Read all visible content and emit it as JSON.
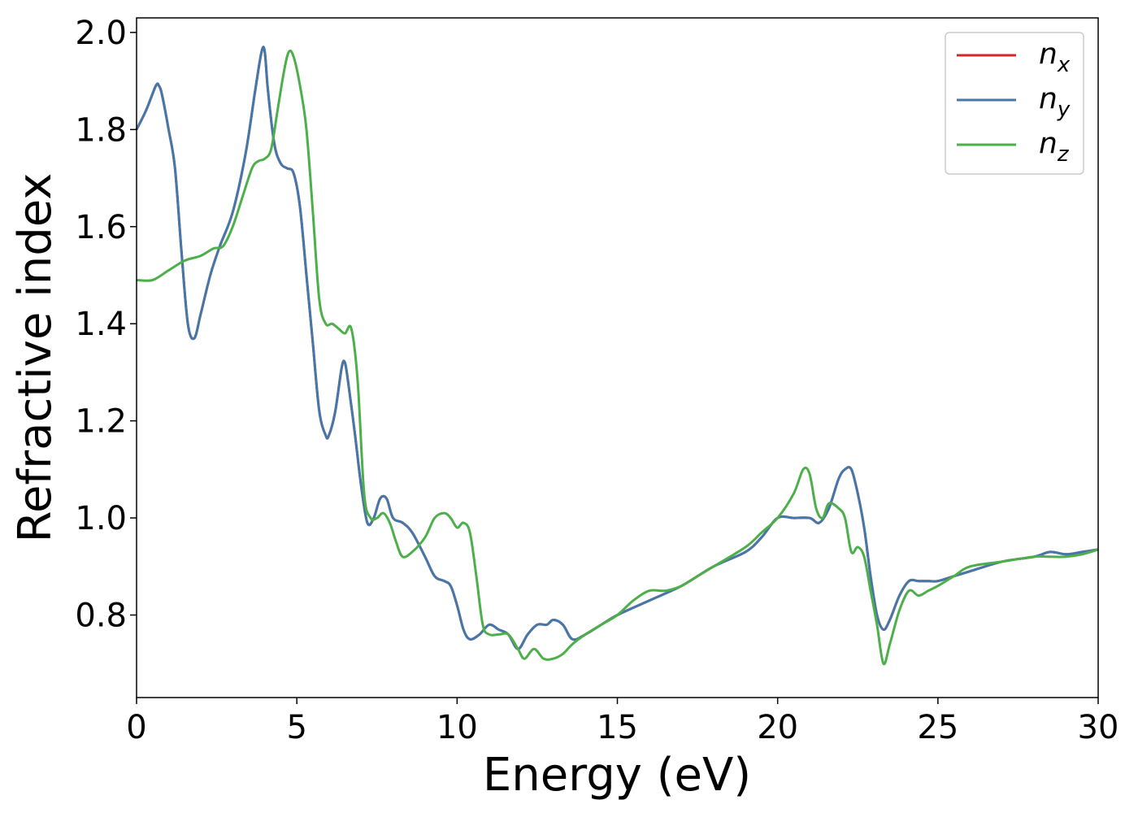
{
  "chart_data": {
    "type": "line",
    "title": "",
    "xlabel": "Energy (eV)",
    "ylabel": "Refractive index",
    "xlim": [
      0,
      30
    ],
    "ylim": [
      0.63,
      2.03
    ],
    "xticks": [
      "0",
      "5",
      "10",
      "15",
      "20",
      "25",
      "30"
    ],
    "yticks": [
      "0.8",
      "1.0",
      "1.2",
      "1.4",
      "1.6",
      "1.8",
      "2.0"
    ],
    "grid": false,
    "legend": {
      "placement": "top-right",
      "entries": [
        {
          "base": "n",
          "sub": "x",
          "color": "#d62728"
        },
        {
          "base": "n",
          "sub": "y",
          "color": "#4477aa"
        },
        {
          "base": "n",
          "sub": "z",
          "color": "#4daf4a"
        }
      ]
    },
    "series": [
      {
        "name": "n_x",
        "color": "#d62728",
        "x": [
          0,
          0.3,
          0.6,
          0.7,
          0.8,
          1.0,
          1.2,
          1.4,
          1.6,
          1.8,
          2.0,
          2.3,
          2.6,
          3.0,
          3.4,
          3.7,
          3.9,
          4.0,
          4.1,
          4.3,
          4.5,
          4.7,
          4.9,
          5.1,
          5.3,
          5.5,
          5.7,
          5.9,
          6.0,
          6.2,
          6.4,
          6.5,
          6.6,
          6.8,
          7.0,
          7.2,
          7.4,
          7.6,
          7.8,
          8.0,
          8.3,
          8.6,
          9.0,
          9.3,
          9.6,
          9.8,
          10.0,
          10.2,
          10.4,
          10.7,
          11.0,
          11.3,
          11.6,
          11.9,
          12.2,
          12.5,
          12.8,
          13.0,
          13.3,
          13.6,
          14.0,
          14.5,
          15.0,
          16.0,
          17.0,
          18.0,
          19.0,
          19.5,
          20.0,
          20.5,
          21.0,
          21.3,
          21.6,
          21.9,
          22.1,
          22.3,
          22.5,
          22.7,
          22.9,
          23.1,
          23.3,
          23.5,
          23.8,
          24.1,
          24.4,
          24.7,
          25.0,
          25.5,
          26.0,
          27.0,
          28.0,
          28.5,
          29.0,
          29.5,
          30.0
        ],
        "values": [
          1.8,
          1.84,
          1.89,
          1.89,
          1.87,
          1.8,
          1.72,
          1.55,
          1.4,
          1.37,
          1.42,
          1.5,
          1.56,
          1.63,
          1.75,
          1.88,
          1.96,
          1.96,
          1.88,
          1.77,
          1.73,
          1.72,
          1.71,
          1.64,
          1.5,
          1.36,
          1.22,
          1.17,
          1.17,
          1.22,
          1.31,
          1.32,
          1.28,
          1.18,
          1.07,
          0.99,
          1.0,
          1.04,
          1.04,
          1.0,
          0.99,
          0.97,
          0.92,
          0.88,
          0.87,
          0.86,
          0.82,
          0.77,
          0.75,
          0.76,
          0.78,
          0.77,
          0.76,
          0.73,
          0.76,
          0.78,
          0.78,
          0.79,
          0.78,
          0.75,
          0.76,
          0.78,
          0.8,
          0.83,
          0.86,
          0.9,
          0.93,
          0.96,
          1.0,
          1.0,
          1.0,
          0.99,
          1.02,
          1.08,
          1.1,
          1.1,
          1.05,
          0.98,
          0.88,
          0.8,
          0.77,
          0.79,
          0.84,
          0.87,
          0.87,
          0.87,
          0.87,
          0.88,
          0.89,
          0.91,
          0.92,
          0.93,
          0.925,
          0.93,
          0.935
        ]
      },
      {
        "name": "n_y",
        "color": "#4477aa",
        "x": [
          0,
          0.3,
          0.6,
          0.7,
          0.8,
          1.0,
          1.2,
          1.4,
          1.6,
          1.8,
          2.0,
          2.3,
          2.6,
          3.0,
          3.4,
          3.7,
          3.9,
          4.0,
          4.1,
          4.3,
          4.5,
          4.7,
          4.9,
          5.1,
          5.3,
          5.5,
          5.7,
          5.9,
          6.0,
          6.2,
          6.4,
          6.5,
          6.6,
          6.8,
          7.0,
          7.2,
          7.4,
          7.6,
          7.8,
          8.0,
          8.3,
          8.6,
          9.0,
          9.3,
          9.6,
          9.8,
          10.0,
          10.2,
          10.4,
          10.7,
          11.0,
          11.3,
          11.6,
          11.9,
          12.2,
          12.5,
          12.8,
          13.0,
          13.3,
          13.6,
          14.0,
          14.5,
          15.0,
          16.0,
          17.0,
          18.0,
          19.0,
          19.5,
          20.0,
          20.5,
          21.0,
          21.3,
          21.6,
          21.9,
          22.1,
          22.3,
          22.5,
          22.7,
          22.9,
          23.1,
          23.3,
          23.5,
          23.8,
          24.1,
          24.4,
          24.7,
          25.0,
          25.5,
          26.0,
          27.0,
          28.0,
          28.5,
          29.0,
          29.5,
          30.0
        ],
        "values": [
          1.8,
          1.84,
          1.89,
          1.89,
          1.87,
          1.8,
          1.72,
          1.55,
          1.4,
          1.37,
          1.42,
          1.5,
          1.56,
          1.63,
          1.75,
          1.88,
          1.96,
          1.96,
          1.88,
          1.77,
          1.73,
          1.72,
          1.71,
          1.64,
          1.5,
          1.36,
          1.22,
          1.17,
          1.17,
          1.22,
          1.31,
          1.32,
          1.28,
          1.18,
          1.07,
          0.99,
          1.0,
          1.04,
          1.04,
          1.0,
          0.99,
          0.97,
          0.92,
          0.88,
          0.87,
          0.86,
          0.82,
          0.77,
          0.75,
          0.76,
          0.78,
          0.77,
          0.76,
          0.73,
          0.76,
          0.78,
          0.78,
          0.79,
          0.78,
          0.75,
          0.76,
          0.78,
          0.8,
          0.83,
          0.86,
          0.9,
          0.93,
          0.96,
          1.0,
          1.0,
          1.0,
          0.99,
          1.02,
          1.08,
          1.1,
          1.1,
          1.05,
          0.98,
          0.88,
          0.8,
          0.77,
          0.79,
          0.84,
          0.87,
          0.87,
          0.87,
          0.87,
          0.88,
          0.89,
          0.91,
          0.92,
          0.93,
          0.925,
          0.93,
          0.935
        ]
      },
      {
        "name": "n_z",
        "color": "#4daf4a",
        "x": [
          0,
          0.5,
          1.0,
          1.5,
          2.0,
          2.4,
          2.7,
          3.0,
          3.3,
          3.6,
          3.8,
          4.0,
          4.2,
          4.4,
          4.6,
          4.75,
          4.9,
          5.1,
          5.3,
          5.5,
          5.7,
          5.9,
          6.1,
          6.3,
          6.5,
          6.7,
          6.9,
          7.1,
          7.3,
          7.5,
          7.7,
          7.9,
          8.1,
          8.3,
          8.6,
          9.0,
          9.3,
          9.6,
          9.8,
          10.0,
          10.2,
          10.4,
          10.6,
          10.8,
          11.0,
          11.3,
          11.6,
          11.9,
          12.1,
          12.4,
          12.7,
          13.0,
          13.3,
          13.6,
          14.0,
          14.5,
          15.0,
          15.5,
          16.0,
          16.5,
          17.0,
          17.5,
          18.0,
          19.0,
          19.5,
          20.0,
          20.5,
          20.8,
          21.0,
          21.2,
          21.4,
          21.6,
          21.9,
          22.1,
          22.3,
          22.5,
          22.7,
          22.9,
          23.1,
          23.3,
          23.5,
          23.8,
          24.1,
          24.4,
          24.7,
          25.0,
          25.5,
          26.0,
          27.0,
          28.0,
          28.5,
          29.0,
          29.5,
          30.0
        ],
        "values": [
          1.49,
          1.49,
          1.51,
          1.53,
          1.54,
          1.555,
          1.56,
          1.6,
          1.66,
          1.72,
          1.735,
          1.74,
          1.76,
          1.84,
          1.92,
          1.96,
          1.95,
          1.89,
          1.8,
          1.63,
          1.45,
          1.4,
          1.4,
          1.39,
          1.38,
          1.39,
          1.28,
          1.05,
          1.0,
          1.0,
          1.01,
          0.99,
          0.95,
          0.92,
          0.93,
          0.96,
          1.0,
          1.01,
          1.0,
          0.98,
          0.99,
          0.97,
          0.88,
          0.78,
          0.76,
          0.76,
          0.76,
          0.73,
          0.71,
          0.73,
          0.71,
          0.71,
          0.72,
          0.74,
          0.76,
          0.78,
          0.8,
          0.83,
          0.85,
          0.85,
          0.86,
          0.88,
          0.9,
          0.94,
          0.97,
          1.0,
          1.05,
          1.1,
          1.09,
          1.02,
          1.0,
          1.03,
          1.02,
          1.0,
          0.93,
          0.94,
          0.92,
          0.85,
          0.78,
          0.7,
          0.74,
          0.81,
          0.85,
          0.84,
          0.85,
          0.86,
          0.88,
          0.9,
          0.91,
          0.92,
          0.92,
          0.92,
          0.925,
          0.935
        ]
      }
    ]
  }
}
